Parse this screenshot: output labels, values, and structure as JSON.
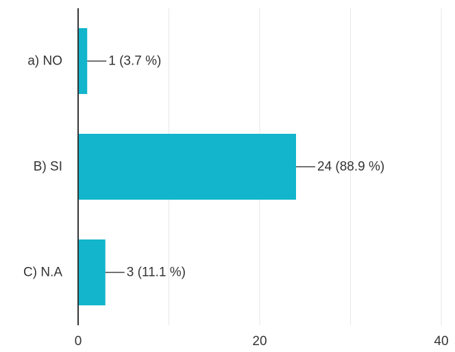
{
  "chart_data": {
    "type": "bar",
    "orientation": "horizontal",
    "categories": [
      "a) NO",
      "B) SI",
      "C) N.A"
    ],
    "values": [
      1,
      24,
      3
    ],
    "data_labels": [
      "1 (3.7 %)",
      "24 (88.9 %)",
      "3 (11.1 %)"
    ],
    "xlim": [
      0,
      40
    ],
    "x_ticks": [
      0,
      20,
      40
    ],
    "x_tick_labels": [
      "0",
      "20",
      "40"
    ],
    "minor_gridlines": [
      10,
      30
    ],
    "grid": true,
    "bar_color": "#12b5cb",
    "title": "",
    "xlabel": "",
    "ylabel": ""
  }
}
